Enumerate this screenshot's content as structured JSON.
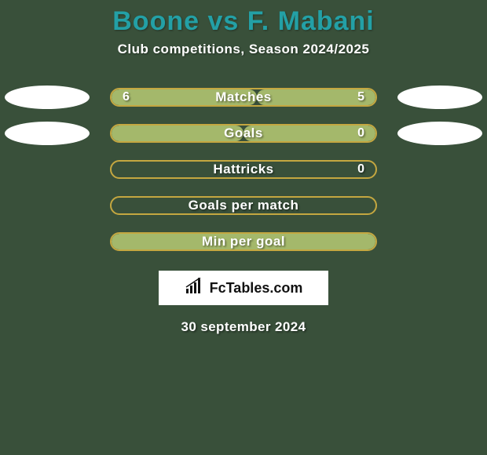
{
  "background_color": "#39503a",
  "title": "Boone vs F. Mabani",
  "title_color": "#23a0a6",
  "subtitle": "Club competitions, Season 2024/2025",
  "oval_color": "#ffffff",
  "bar_border_color": "#c4a740",
  "bar_track_color": "#39503a",
  "fill_left_color": "#a4b86b",
  "fill_right_color": "#a4b86b",
  "rows": [
    {
      "label": "Matches",
      "left": "6",
      "right": "5",
      "left_pct": 55,
      "right_pct": 45,
      "show_ovals": true,
      "show_values": true
    },
    {
      "label": "Goals",
      "left": "",
      "right": "0",
      "left_pct": 50,
      "right_pct": 50,
      "show_ovals": true,
      "show_values": true
    },
    {
      "label": "Hattricks",
      "left": "",
      "right": "0",
      "left_pct": 0,
      "right_pct": 0,
      "show_ovals": false,
      "show_values": true
    },
    {
      "label": "Goals per match",
      "left": "",
      "right": "",
      "left_pct": 0,
      "right_pct": 0,
      "show_ovals": false,
      "show_values": false
    },
    {
      "label": "Min per goal",
      "left": "",
      "right": "",
      "left_pct": 0,
      "right_pct": 100,
      "show_ovals": false,
      "show_values": false
    }
  ],
  "logo_text": "FcTables.com",
  "date": "30 september 2024"
}
